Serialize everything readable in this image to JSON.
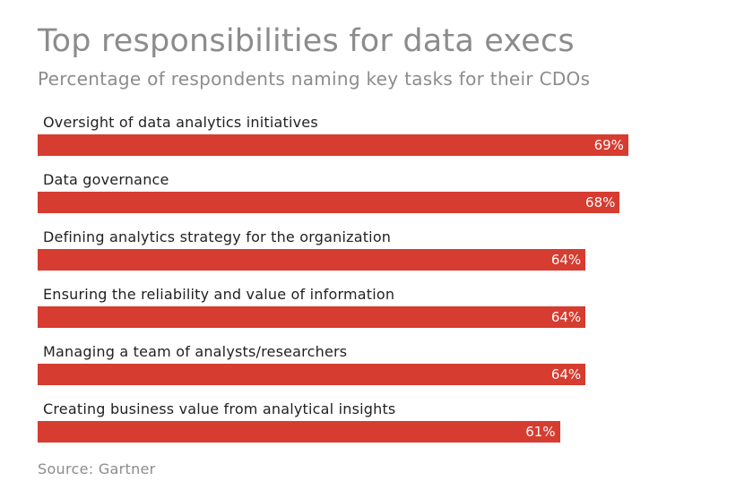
{
  "chart_data": {
    "type": "bar",
    "orientation": "horizontal",
    "title": "Top responsibilities for data execs",
    "subtitle": "Percentage of respondents naming key tasks for their CDOs",
    "categories": [
      "Oversight of data analytics initiatives",
      "Data governance",
      "Defining analytics strategy for the organization",
      "Ensuring the reliability and value of information",
      "Managing a team of analysts/researchers",
      "Creating business value from analytical insights"
    ],
    "values": [
      69,
      68,
      64,
      64,
      64,
      61
    ],
    "value_labels": [
      "69%",
      "68%",
      "64%",
      "64%",
      "64%",
      "61%"
    ],
    "unit": "%",
    "xlim": [
      0,
      100
    ],
    "grid": false,
    "legend": "none",
    "bar_color": "#d63c30",
    "source": "Source: Gartner"
  }
}
